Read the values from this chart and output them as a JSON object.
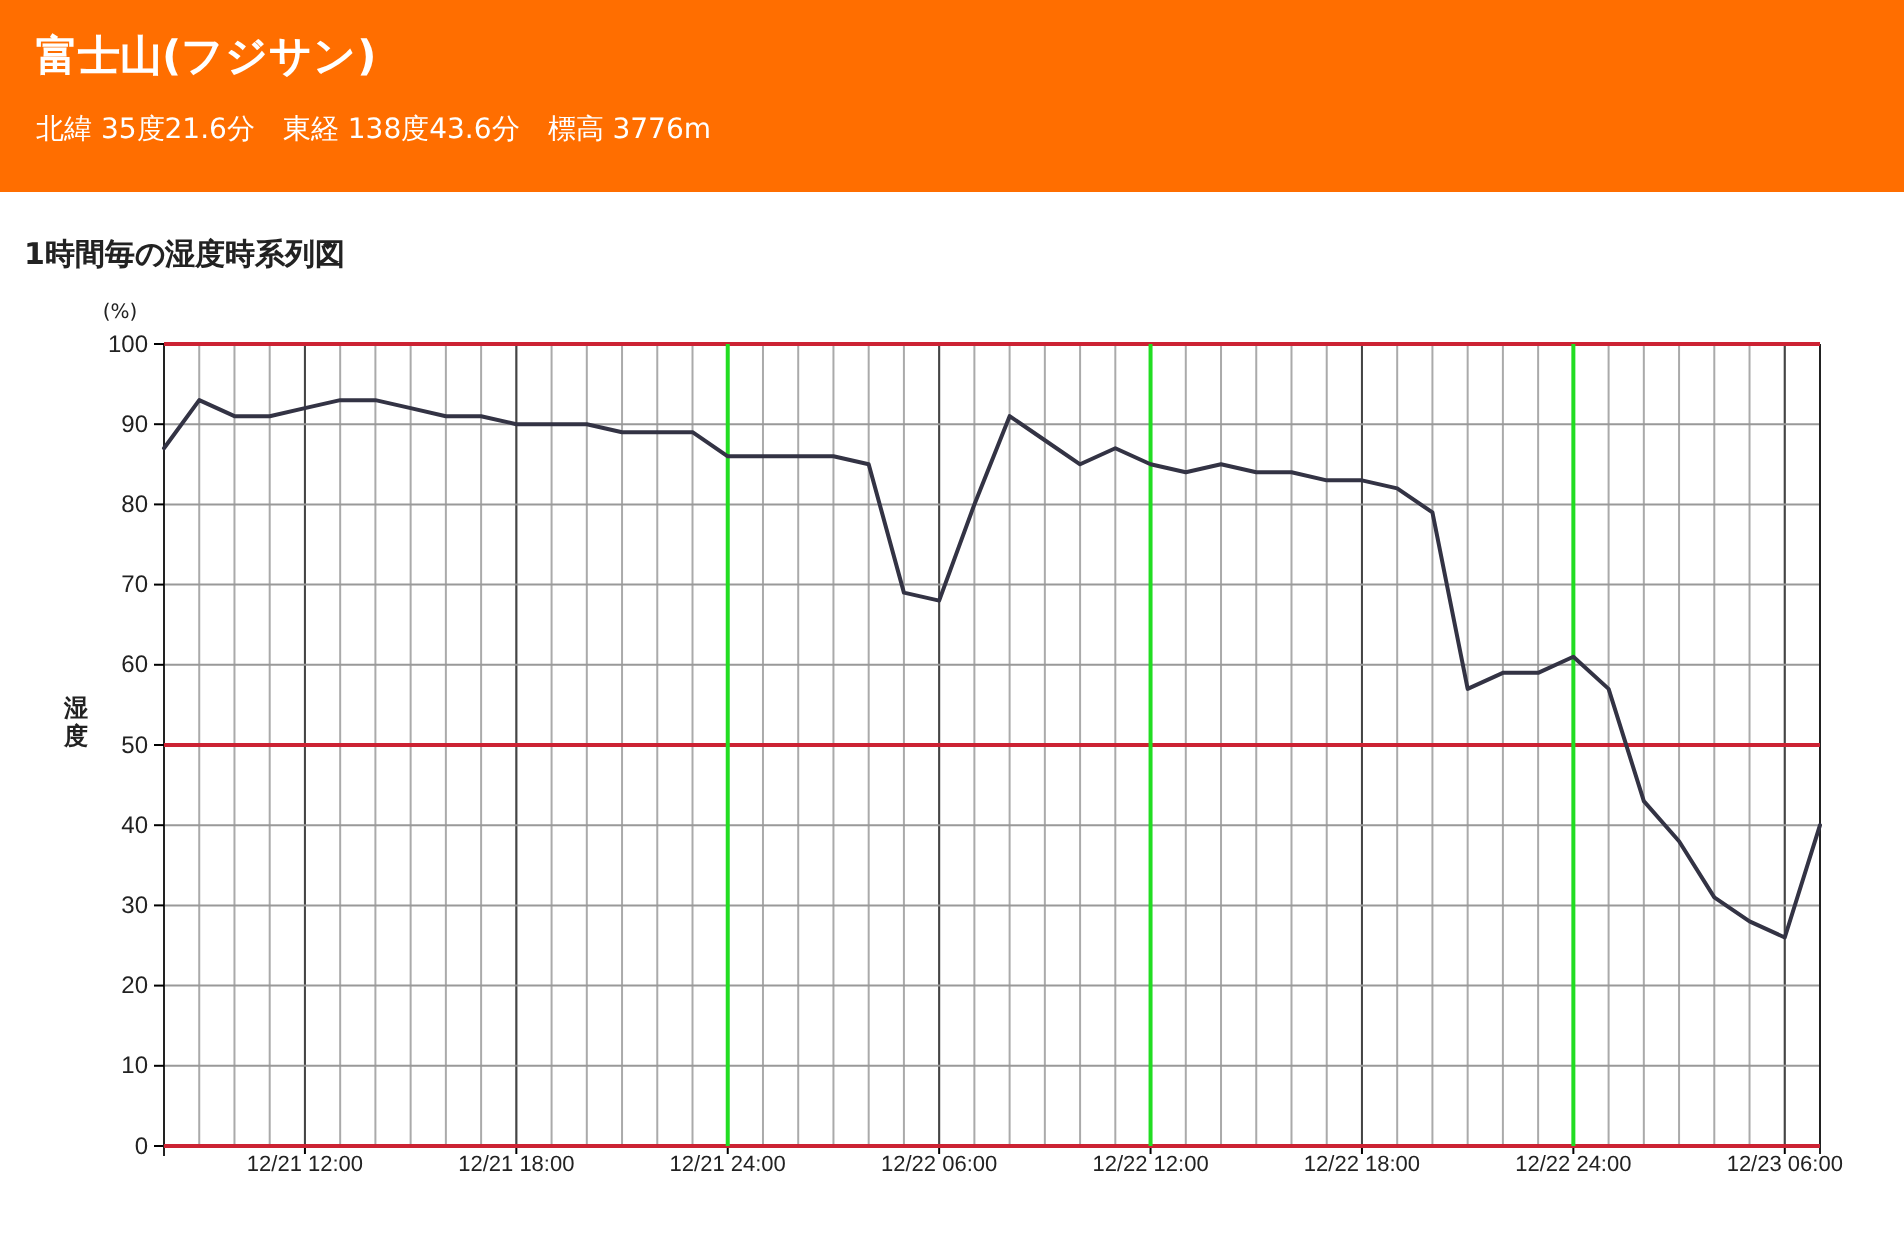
{
  "chart_data": {
    "type": "line",
    "title": "富士山(フジサン)",
    "subtitle": "北緯 35度21.6分　東経 138度43.6分　標高 3776m",
    "annotations": [
      "1時間毎の湿度時系列図",
      "(%)"
    ],
    "ylabel": "湿度",
    "x": [
      "--12-21T08:00",
      "--12-21T09:00",
      "--12-21T10:00",
      "--12-21T11:00",
      "--12-21T12:00",
      "--12-21T13:00",
      "--12-21T14:00",
      "--12-21T15:00",
      "--12-21T16:00",
      "--12-21T17:00",
      "--12-21T18:00",
      "--12-21T19:00",
      "--12-21T20:00",
      "--12-21T21:00",
      "--12-21T22:00",
      "--12-21T23:00",
      "--12-22T00:00",
      "--12-22T01:00",
      "--12-22T02:00",
      "--12-22T03:00",
      "--12-22T04:00",
      "--12-22T05:00",
      "--12-22T06:00",
      "--12-22T07:00",
      "--12-22T08:00",
      "--12-22T09:00",
      "--12-22T10:00",
      "--12-22T11:00",
      "--12-22T12:00",
      "--12-22T13:00",
      "--12-22T14:00",
      "--12-22T15:00",
      "--12-22T16:00",
      "--12-22T17:00",
      "--12-22T18:00",
      "--12-22T19:00",
      "--12-22T20:00",
      "--12-22T21:00",
      "--12-22T22:00",
      "--12-22T23:00",
      "--12-23T00:00",
      "--12-23T01:00",
      "--12-23T02:00",
      "--12-23T03:00",
      "--12-23T04:00",
      "--12-23T05:00",
      "--12-23T06:00",
      "--12-23T07:00"
    ],
    "series": [
      {
        "color": "#333344",
        "values": [
          87,
          93,
          91,
          91,
          92,
          93,
          93,
          92,
          91,
          91,
          90,
          90,
          90,
          89,
          89,
          89,
          86,
          86,
          86,
          86,
          85,
          69,
          68,
          80,
          91,
          88,
          85,
          87,
          85,
          84,
          85,
          84,
          84,
          83,
          83,
          82,
          79,
          57,
          59,
          59,
          61,
          57,
          43,
          38,
          31,
          28,
          26,
          40
        ]
      }
    ],
    "xlim": [
      "--12-21T08:00",
      "--12-23T07:00"
    ],
    "xticks": [
      {
        "value": "--12-21T12:00",
        "label": "12/21 12:00"
      },
      {
        "value": "--12-21T18:00",
        "label": "12/21 18:00"
      },
      {
        "value": "--12-21T24:00",
        "label": "12/21 24:00"
      },
      {
        "value": "--12-22T06:00",
        "label": "12/22 06:00"
      },
      {
        "value": "--12-22T12:00",
        "label": "12/22 12:00"
      },
      {
        "value": "--12-22T18:00",
        "label": "12/22 18:00"
      },
      {
        "value": "--12-22T24:00",
        "label": "12/22 24:00"
      },
      {
        "value": "--12-23T06:00",
        "label": "12/23 06:00"
      }
    ],
    "ylim": [
      0,
      100
    ],
    "yticks": [
      0,
      10,
      20,
      30,
      40,
      50,
      60,
      70,
      80,
      90,
      100
    ],
    "grid": true,
    "marker": "none",
    "line_style": "solid",
    "ref_lines": [
      {
        "axis": "y",
        "value": 100,
        "color": "#cc2233"
      },
      {
        "axis": "y",
        "value": 50,
        "color": "#cc2233"
      },
      {
        "axis": "y",
        "value": 0,
        "color": "#cc2233"
      },
      {
        "axis": "x",
        "value": "--12-22T00:00",
        "color": "#22dd22"
      },
      {
        "axis": "x",
        "value": "--12-22T12:00",
        "color": "#22dd22"
      },
      {
        "axis": "x",
        "value": "--12-23T00:00",
        "color": "#22dd22"
      }
    ]
  }
}
